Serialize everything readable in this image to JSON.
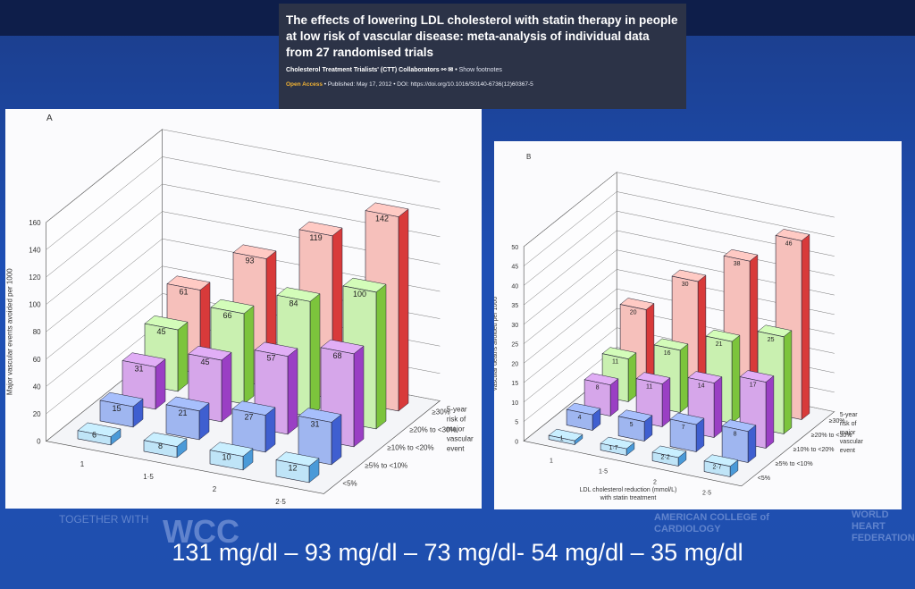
{
  "paper": {
    "title": "The effects of lowering LDL cholesterol with statin therapy in people at low risk of vascular disease: meta-analysis of individual data from 27 randomised trials",
    "authors": "Cholesterol Treatment Trialists' (CTT) Collaborators",
    "footnotes": "Show footnotes",
    "open_access": "Open Access",
    "published": "Published: May 17, 2012",
    "doi": "DOI: https://doi.org/10.1016/S0140-6736(12)60367-5"
  },
  "footer": {
    "values_text": "131 mg/dl – 93 mg/dl – 73 mg/dl- 54 mg/dl – 35 mg/dl",
    "together_with": "TOGETHER WITH",
    "wcc": "WCC",
    "acc": "AMERICAN COLLEGE of CARDIOLOGY",
    "whf": "WORLD HEART FEDERATION"
  },
  "colors": {
    "risk_lt5": "#bfe4f7",
    "risk_5_10": "#9fb6f0",
    "risk_10_20": "#d6a6ea",
    "risk_20_30": "#c9f0b0",
    "risk_ge30": "#f6c0bb"
  },
  "chart_data": [
    {
      "type": "bar",
      "panel": "A",
      "ylabel": "Major vascular events avoided per 1000",
      "ylim": [
        0,
        160
      ],
      "yticks": [
        "0",
        "20",
        "40",
        "60",
        "80",
        "100",
        "120",
        "140",
        "160"
      ],
      "categories": [
        "1",
        "1·5",
        "2",
        "2·5"
      ],
      "depth_label": "5-year risk of major vascular event",
      "series": [
        {
          "name": "<5%",
          "values": [
            6,
            8,
            10,
            12
          ]
        },
        {
          "name": "≥5% to <10%",
          "values": [
            15,
            21,
            27,
            31
          ]
        },
        {
          "name": "≥10% to <20%",
          "values": [
            31,
            45,
            57,
            68
          ]
        },
        {
          "name": "≥20% to <30%",
          "values": [
            45,
            66,
            84,
            100
          ]
        },
        {
          "name": "≥30%",
          "values": [
            61,
            93,
            119,
            142
          ]
        }
      ]
    },
    {
      "type": "bar",
      "panel": "B",
      "ylabel": "Vascular deaths avoided per 1000",
      "xlabel": "LDL cholesterol reduction (mmol/L) with statin treatment",
      "ylim": [
        0,
        50
      ],
      "yticks": [
        "0",
        "5",
        "10",
        "15",
        "20",
        "25",
        "30",
        "35",
        "40",
        "45",
        "50"
      ],
      "categories": [
        "1",
        "1·5",
        "2",
        "2·5"
      ],
      "depth_label": "5-year risk of major vascular event",
      "series": [
        {
          "name": "<5%",
          "values": [
            1.0,
            1.7,
            2.2,
            2.7
          ]
        },
        {
          "name": "≥5% to <10%",
          "values": [
            4,
            5,
            7,
            8
          ]
        },
        {
          "name": "≥10% to <20%",
          "values": [
            8,
            11,
            14,
            17
          ]
        },
        {
          "name": "≥20% to <30%",
          "values": [
            11,
            16,
            21,
            25
          ]
        },
        {
          "name": "≥30%",
          "values": [
            20,
            30,
            38,
            46
          ]
        }
      ]
    }
  ]
}
